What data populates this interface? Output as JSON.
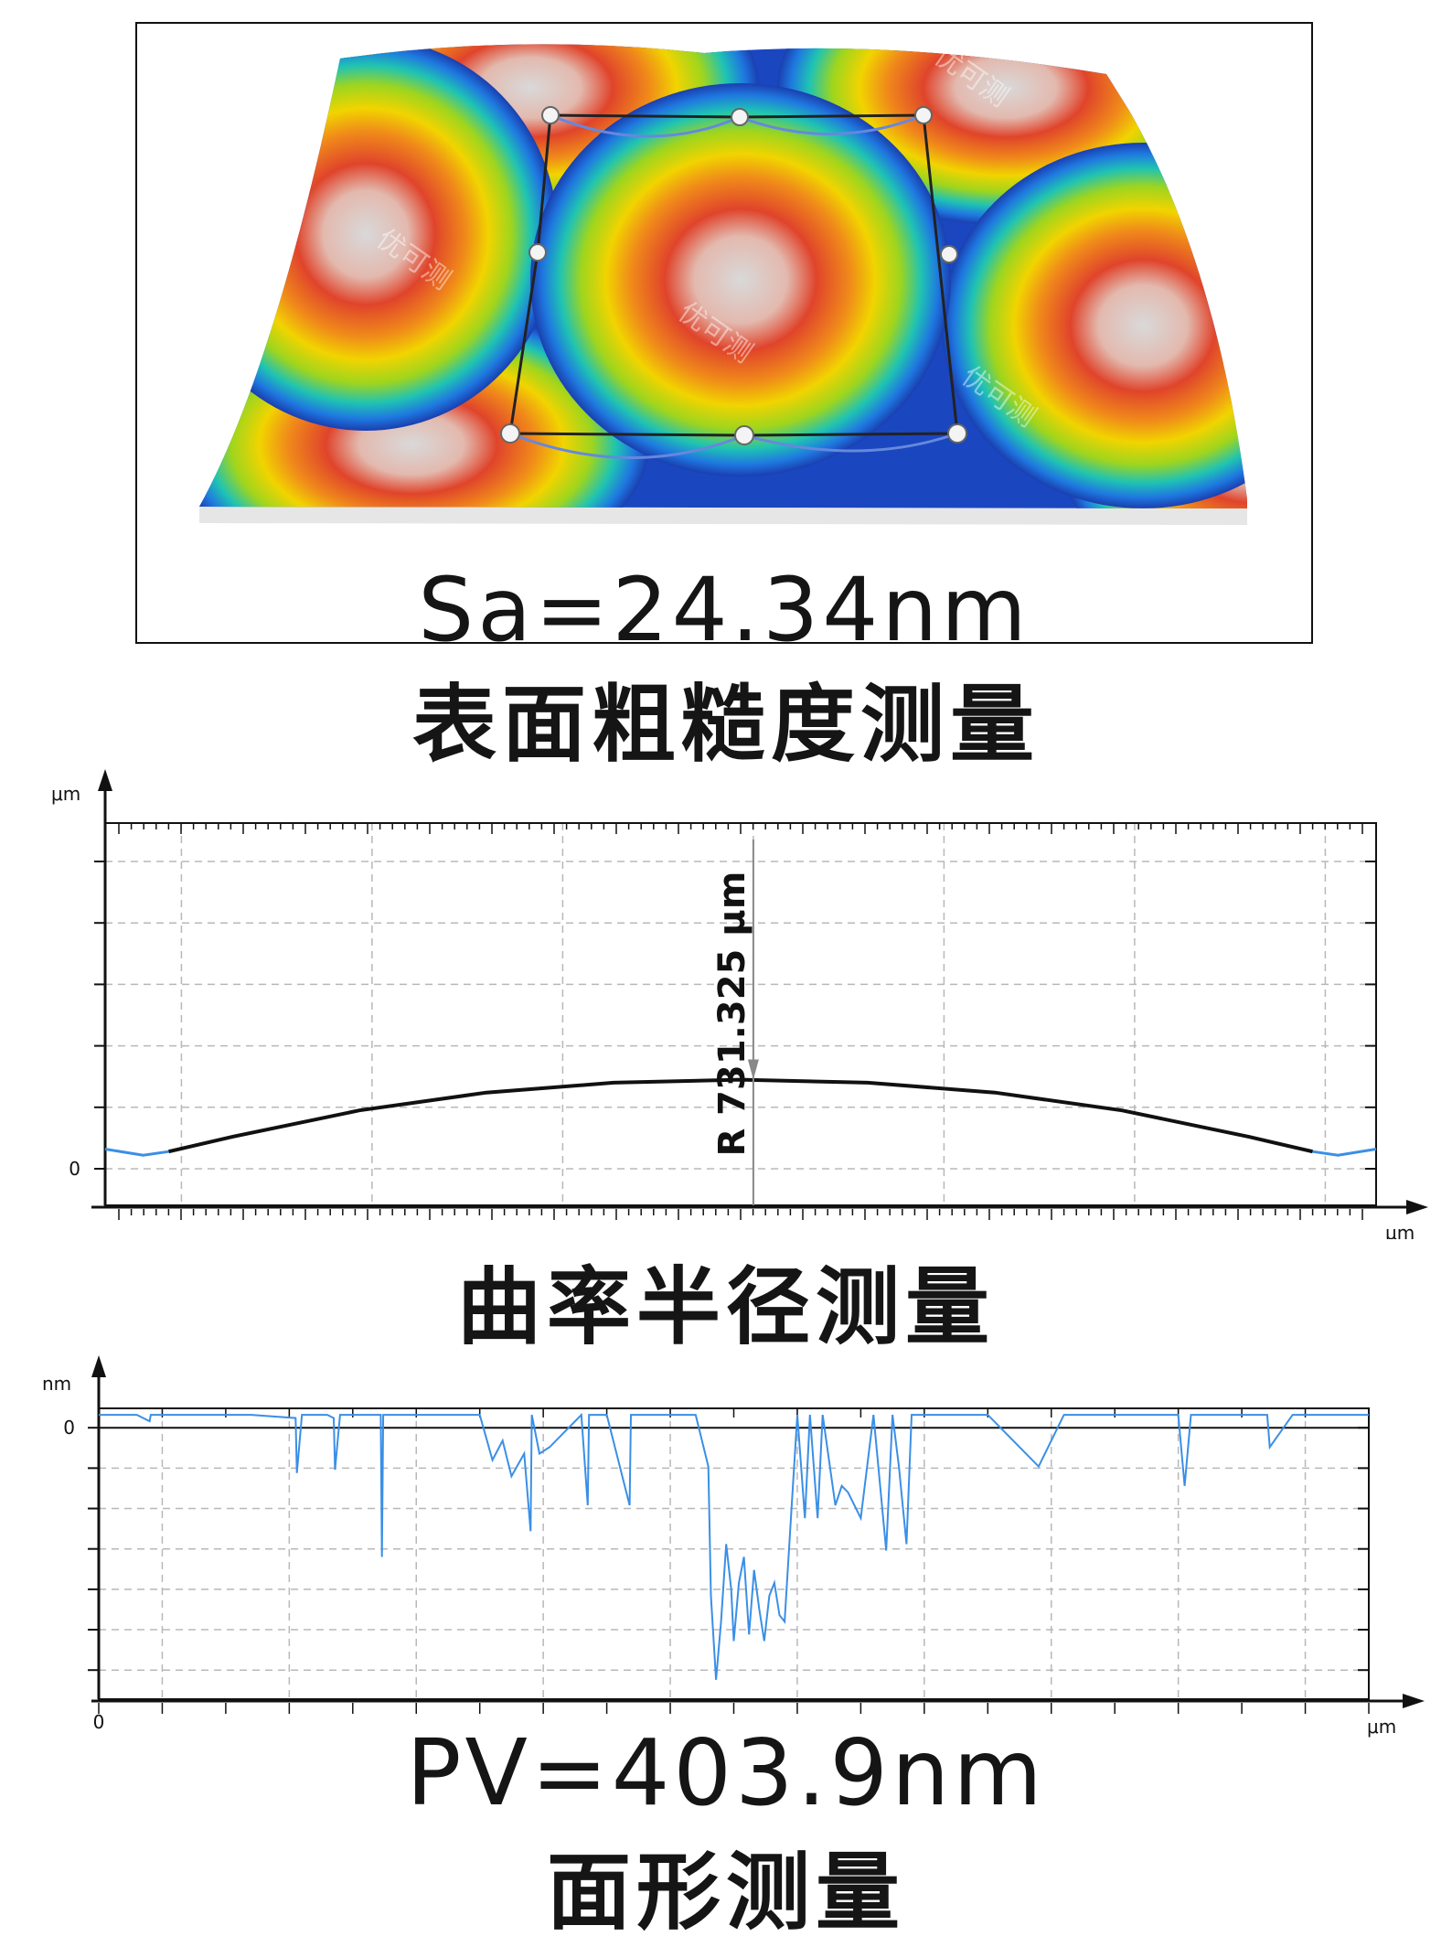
{
  "roughness": {
    "sa_label": "Sa=24.34nm",
    "caption": "表面粗糙度测量",
    "watermark": "优可测"
  },
  "curvature": {
    "caption": "曲率半径测量",
    "radius_label": "R 731.325 μm"
  },
  "form": {
    "pv_label": "PV=403.9nm",
    "caption": "面形测量"
  },
  "colors": {
    "profile_line": "#111111",
    "profile_edge": "#3a8fe6",
    "trace": "#3a8fe6",
    "grid": "#b8b8b8"
  },
  "chart_data": [
    {
      "type": "line",
      "ylabel": "μm",
      "xlabel": "μm",
      "y_tick_labels": [
        "0"
      ],
      "ylim": [
        0,
        5
      ],
      "xlim": [
        0,
        1
      ],
      "grid": true,
      "annotation": "R 731.325 μm",
      "series": [
        {
          "x": [
            0.0,
            0.03,
            0.05,
            0.1,
            0.2,
            0.3,
            0.4,
            0.5,
            0.6,
            0.7,
            0.8,
            0.9,
            0.95,
            0.97,
            1.0
          ],
          "y": [
            0.32,
            0.22,
            0.28,
            0.52,
            0.95,
            1.24,
            1.4,
            1.45,
            1.4,
            1.24,
            0.95,
            0.52,
            0.28,
            0.22,
            0.32
          ]
        }
      ]
    },
    {
      "type": "line",
      "ylabel": "nm",
      "xlabel": "μm",
      "y_tick_labels": [
        "0"
      ],
      "x_tick_labels": [
        "0"
      ],
      "ylim": [
        -420,
        30
      ],
      "xlim": [
        0,
        1
      ],
      "grid": true,
      "series": [
        {
          "x": [
            0.0,
            0.03,
            0.04,
            0.041,
            0.05,
            0.12,
            0.155,
            0.156,
            0.16,
            0.18,
            0.185,
            0.186,
            0.19,
            0.222,
            0.223,
            0.224,
            0.26,
            0.3,
            0.31,
            0.318,
            0.325,
            0.335,
            0.34,
            0.341,
            0.347,
            0.355,
            0.38,
            0.385,
            0.386,
            0.4,
            0.418,
            0.419,
            0.42,
            0.44,
            0.47,
            0.48,
            0.482,
            0.486,
            0.49,
            0.494,
            0.498,
            0.5,
            0.504,
            0.508,
            0.512,
            0.516,
            0.52,
            0.524,
            0.528,
            0.532,
            0.536,
            0.54,
            0.545,
            0.55,
            0.556,
            0.56,
            0.566,
            0.57,
            0.58,
            0.585,
            0.59,
            0.6,
            0.61,
            0.62,
            0.625,
            0.63,
            0.636,
            0.64,
            0.645,
            0.65,
            0.66,
            0.7,
            0.74,
            0.76,
            0.78,
            0.8,
            0.83,
            0.85,
            0.855,
            0.86,
            0.87,
            0.9,
            0.92,
            0.922,
            0.94,
            0.96,
            1.0
          ],
          "y": [
            20,
            20,
            10,
            20,
            20,
            20,
            15,
            -70,
            20,
            20,
            15,
            -65,
            20,
            20,
            -200,
            20,
            20,
            20,
            -50,
            -20,
            -75,
            -40,
            -160,
            20,
            -40,
            -30,
            20,
            -120,
            20,
            20,
            -120,
            20,
            20,
            20,
            20,
            -60,
            -260,
            -390,
            -300,
            -180,
            -250,
            -330,
            -240,
            -200,
            -320,
            -220,
            -280,
            -330,
            -260,
            -240,
            -290,
            -300,
            -140,
            20,
            -140,
            20,
            -140,
            20,
            -120,
            -90,
            -100,
            -140,
            20,
            -190,
            20,
            -60,
            -180,
            20,
            20,
            20,
            20,
            20,
            -60,
            20,
            20,
            20,
            20,
            20,
            -90,
            20,
            20,
            20,
            20,
            -30,
            20,
            20,
            20
          ]
        }
      ]
    }
  ]
}
